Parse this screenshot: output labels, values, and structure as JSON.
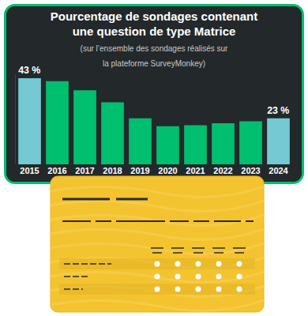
{
  "chart_data": {
    "type": "bar",
    "title": "Pourcentage de sondages contenant une question de type Matrice",
    "subtitle": "(sur l’ensemble des sondages réalisés sur la plateforme SurveyMonkey)",
    "categories": [
      "2015",
      "2016",
      "2017",
      "2018",
      "2019",
      "2020",
      "2021",
      "2022",
      "2023",
      "2024"
    ],
    "values": [
      43,
      41.5,
      37,
      31,
      23,
      19,
      19.5,
      20.5,
      21.5,
      23
    ],
    "value_labels": [
      "43 %",
      null,
      null,
      null,
      null,
      null,
      null,
      null,
      null,
      "23 %"
    ],
    "colors": [
      "#74c9d3",
      "#00bf6f",
      "#00bf6f",
      "#00bf6f",
      "#00bf6f",
      "#00bf6f",
      "#00bf6f",
      "#00bf6f",
      "#00bf6f",
      "#74c9d3"
    ],
    "ylim": [
      0,
      45
    ],
    "yticks": [],
    "grid": false,
    "tick_labels": "x"
  }
}
